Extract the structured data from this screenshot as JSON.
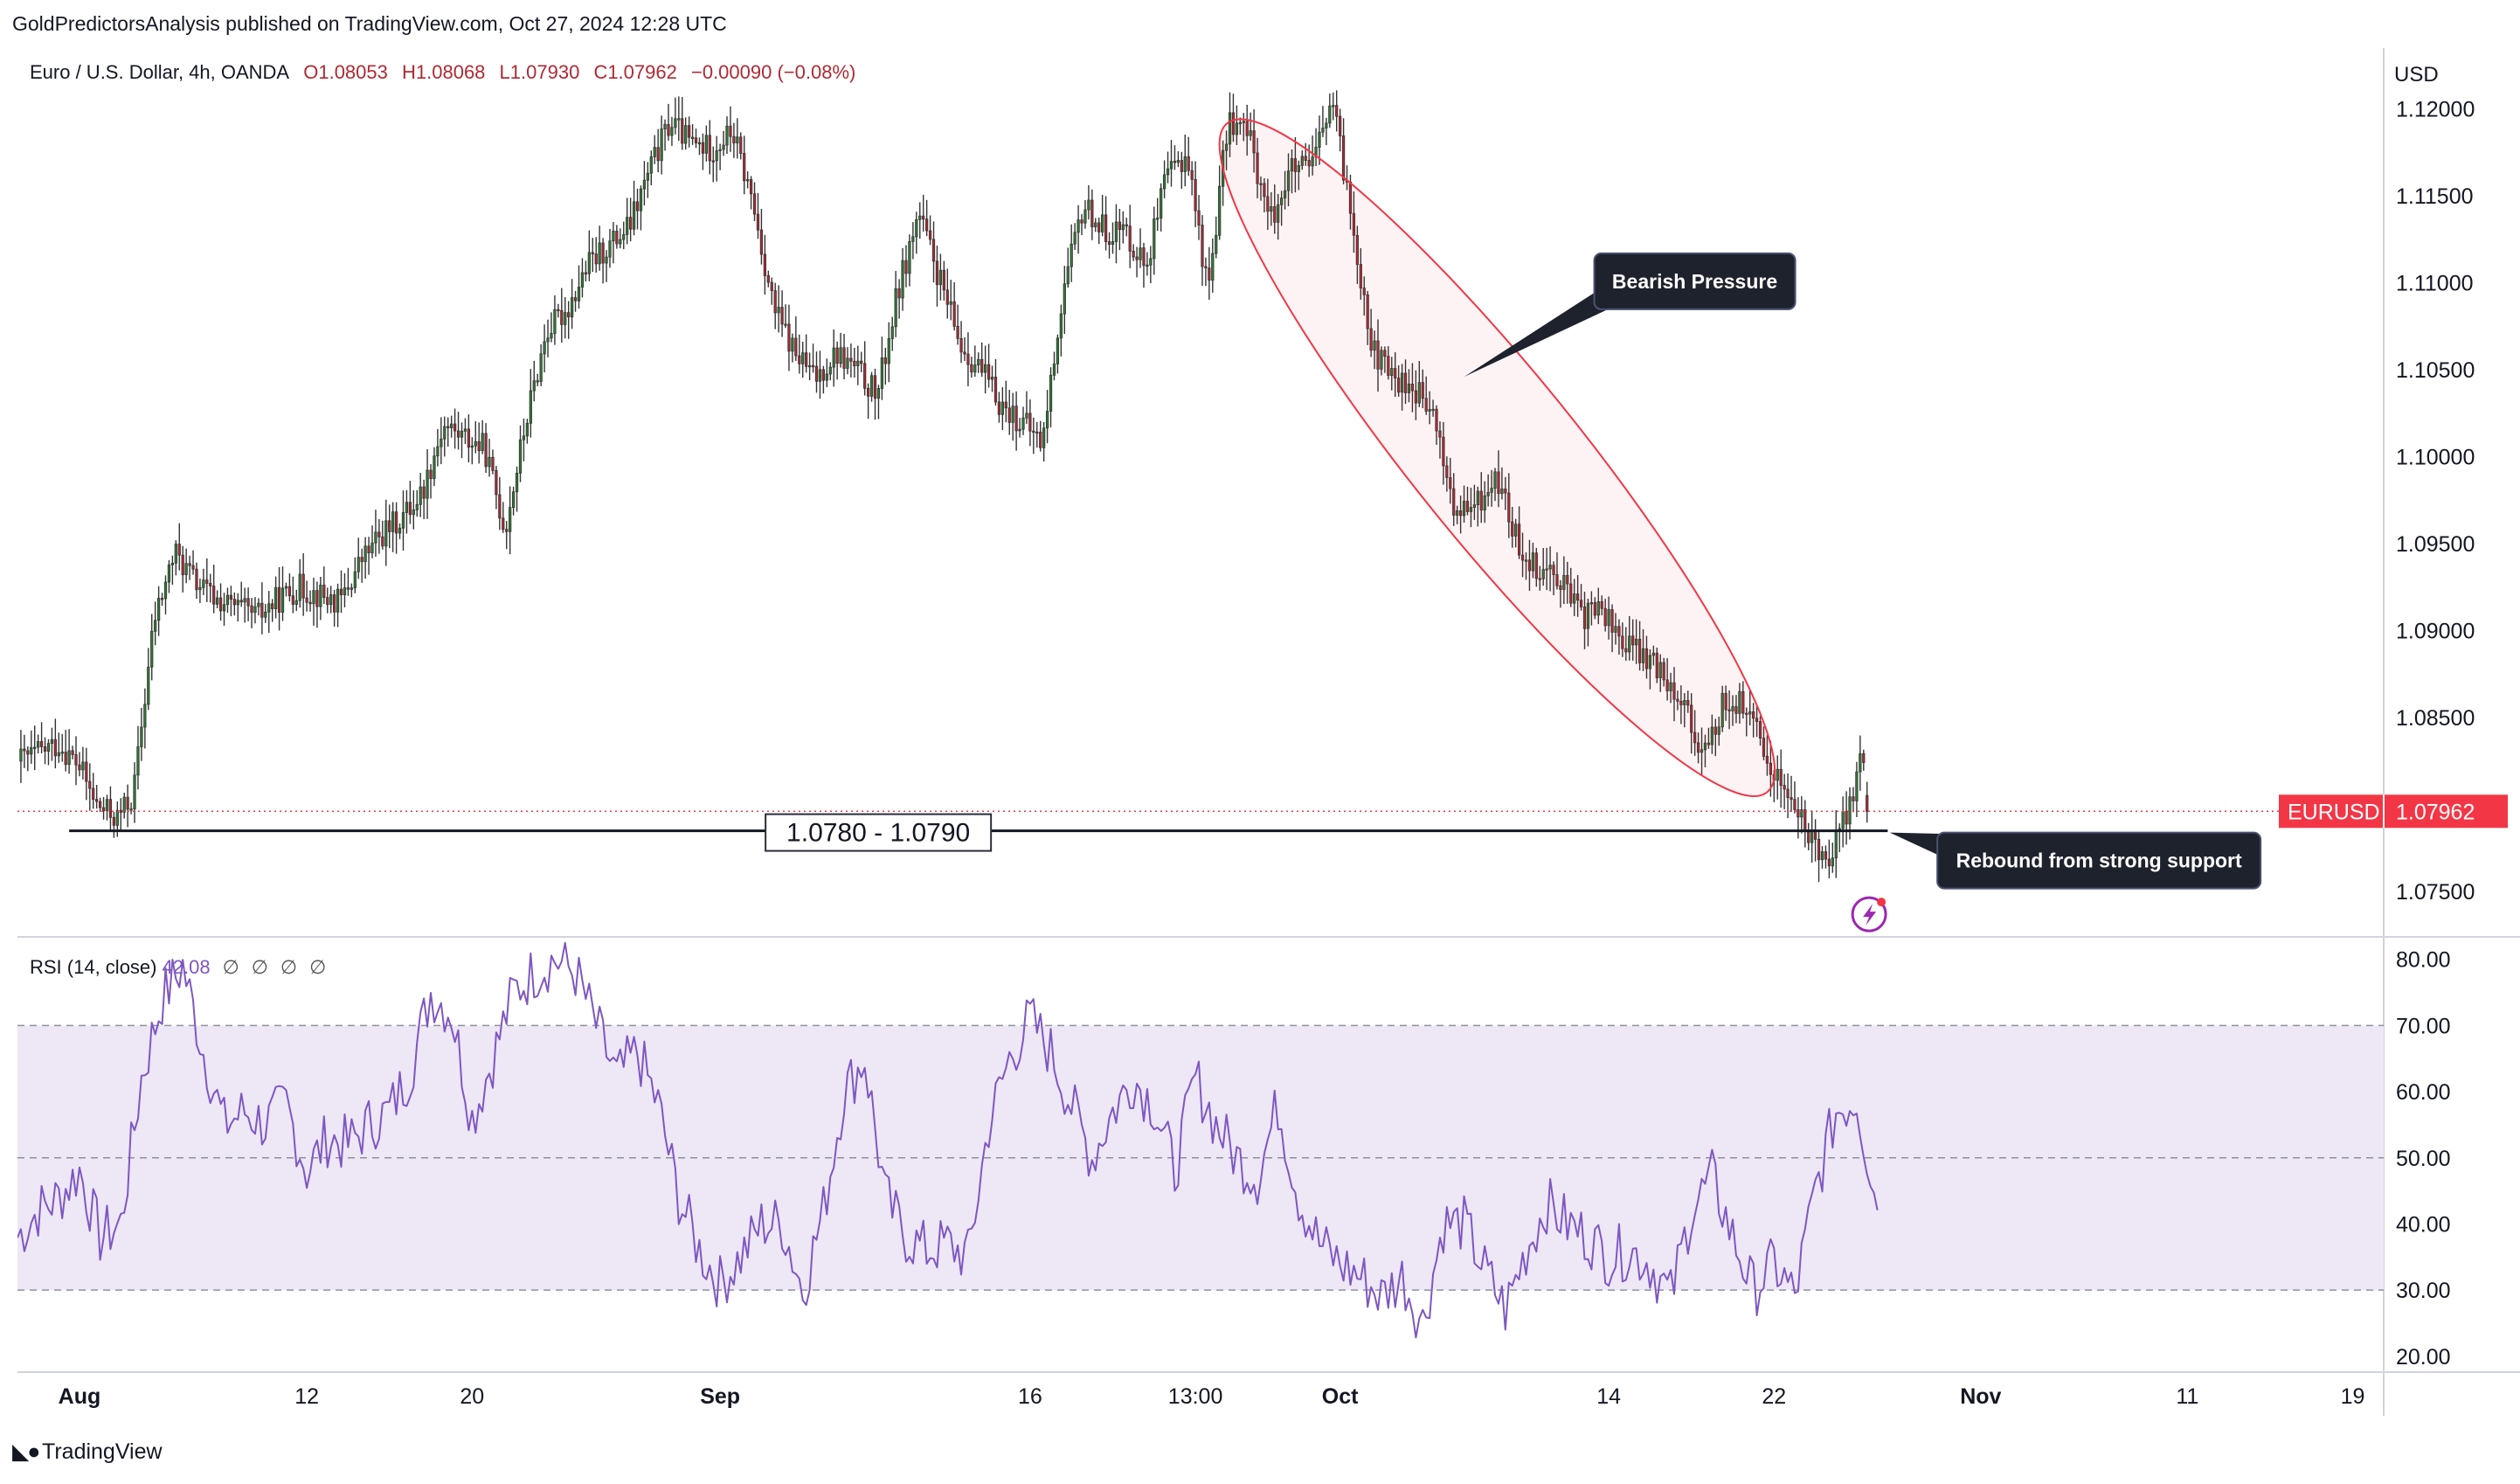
{
  "publisher": "GoldPredictorsAnalysis published on TradingView.com, Oct 27, 2024 12:28 UTC",
  "legend": {
    "symbol": "Euro / U.S. Dollar, 4h, OANDA",
    "open": "O1.08053",
    "high": "H1.08068",
    "low": "L1.07930",
    "close": "C1.07962",
    "change": "−0.00090 (−0.08%)"
  },
  "currency": "USD",
  "footer_brand": "TradingView",
  "colors": {
    "up": "#26a69a",
    "up_candle": "#2e7d32",
    "down": "#b22833",
    "rsi_line": "#7e57c2",
    "rsi_band": "#ede7f6",
    "price_tag": "#f23645",
    "ellipse": "#f23645"
  },
  "chart_data": [
    {
      "type": "candlestick",
      "timeframe": "4h",
      "y_axis_labels": [
        "1.12000",
        "1.11500",
        "1.11000",
        "1.10500",
        "1.10000",
        "1.09500",
        "1.09000",
        "1.08500",
        "1.07500"
      ],
      "ylim": [
        1.0725,
        1.1235
      ],
      "x_axis_labels": [
        "Aug",
        "12",
        "20",
        "Sep",
        "16",
        "13:00",
        "Oct",
        "14",
        "22",
        "Nov",
        "11",
        "19"
      ],
      "x_axis_days": [
        1,
        12,
        20,
        32,
        47,
        55,
        62,
        75,
        83,
        93,
        103,
        111
      ],
      "xlim": [
        -2.0,
        112.5
      ],
      "price_path_anchors": {
        "day": [
          -2,
          0,
          1,
          1.8,
          2.8,
          3.6,
          4.6,
          5.6,
          6.6,
          7.6,
          9.6,
          10.6,
          11.6,
          13.6,
          14.6,
          15.6,
          16.6,
          17.6,
          18.6,
          20.6,
          21.6,
          22.6,
          23.6,
          24.6,
          25.6,
          27.6,
          28.6,
          29.6,
          30.6,
          31.6,
          32.6,
          33.6,
          34.6,
          35.6,
          36.6,
          37.6,
          38.6,
          39.6,
          40.6,
          41.6,
          43.6,
          44.6,
          45.6,
          46.6,
          47.6,
          48.6,
          49.6,
          50.6,
          51.6,
          52.6,
          53.6,
          54.6,
          55.6,
          56.6,
          57.6,
          58.6,
          59.6,
          60.6,
          61.6,
          62.6,
          63.6,
          64.6,
          65.6,
          66.6,
          67.6,
          68.6,
          69.6,
          70.6,
          71.6,
          72.6,
          73.6,
          74.6,
          75.6,
          76.6,
          77.6,
          78.6,
          79.6,
          80.6,
          81.6,
          82.6,
          83.6,
          84.6,
          85.6,
          86.6,
          87.6
        ],
        "close": [
          1.0825,
          1.0835,
          1.0822,
          1.08,
          1.0792,
          1.0805,
          1.0905,
          1.0945,
          1.0928,
          1.0918,
          1.0908,
          1.0918,
          1.0925,
          1.0916,
          1.094,
          1.0955,
          1.0965,
          1.098,
          1.1018,
          1.1005,
          1.0958,
          1.102,
          1.1072,
          1.1085,
          1.111,
          1.1132,
          1.1165,
          1.1193,
          1.118,
          1.1177,
          1.1187,
          1.1145,
          1.1085,
          1.106,
          1.1045,
          1.106,
          1.105,
          1.1035,
          1.1095,
          1.114,
          1.1065,
          1.105,
          1.103,
          1.102,
          1.1008,
          1.1095,
          1.1145,
          1.113,
          1.113,
          1.111,
          1.116,
          1.1175,
          1.1095,
          1.1195,
          1.1185,
          1.1135,
          1.1165,
          1.1165,
          1.1205,
          1.1135,
          1.106,
          1.1045,
          1.104,
          1.102,
          1.0965,
          1.0972,
          1.0988,
          1.095,
          1.0936,
          1.0933,
          1.0908,
          1.0913,
          1.0895,
          1.0886,
          1.0877,
          1.086,
          1.0826,
          1.086,
          1.0857,
          1.0827,
          1.0808,
          1.0783,
          1.077,
          1.0797,
          1.084
        ]
      }
    },
    {
      "type": "line",
      "title": "RSI (14, close)",
      "last_value": "42.08",
      "na_values": [
        "∅",
        "∅",
        "∅",
        "∅"
      ],
      "y_axis_labels": [
        "80.00",
        "70.00",
        "60.00",
        "50.00",
        "40.00",
        "30.00",
        "20.00"
      ],
      "ylim": [
        18,
        83
      ],
      "band": [
        30,
        70
      ],
      "midline": 50,
      "x": [
        -2,
        -1,
        0,
        1,
        2,
        3,
        4,
        5,
        6,
        7,
        8,
        9,
        10,
        11,
        12,
        13,
        14,
        15,
        16,
        17,
        18,
        19,
        20,
        21,
        22,
        23,
        24,
        25,
        26,
        27,
        28,
        29,
        30,
        31,
        32,
        33,
        34,
        35,
        36,
        37,
        38,
        39,
        40,
        41,
        42,
        43,
        44,
        45,
        46,
        47,
        48,
        49,
        50,
        51,
        52,
        53,
        54,
        55,
        56,
        57,
        58,
        59,
        60,
        61,
        62,
        63,
        64,
        65,
        66,
        67,
        68,
        69,
        70,
        71,
        72,
        73,
        74,
        75,
        76,
        77,
        78,
        79,
        80,
        81,
        82,
        83,
        84,
        85,
        86,
        87,
        88
      ],
      "values": [
        38,
        42,
        44,
        48,
        38,
        40,
        62,
        74,
        79,
        66,
        55,
        57,
        55,
        58,
        48,
        53,
        52,
        55,
        57,
        63,
        75,
        72,
        56,
        65,
        75,
        78,
        80,
        78,
        70,
        62,
        66,
        58,
        44,
        36,
        31,
        35,
        40,
        40,
        30,
        42,
        60,
        65,
        44,
        38,
        36,
        37,
        35,
        55,
        65,
        71,
        66,
        58,
        50,
        57,
        62,
        58,
        48,
        62,
        55,
        50,
        47,
        58,
        44,
        37,
        34,
        32,
        29,
        32,
        25,
        40,
        40,
        33,
        27,
        36,
        43,
        40,
        38,
        35,
        36,
        34,
        29,
        42,
        47,
        38,
        30,
        34,
        29,
        45,
        57,
        59,
        42
      ]
    }
  ],
  "support_label": "1.0780 - 1.0790",
  "support_level": 1.0785,
  "current_price_tag": {
    "symbol": "EURUSD",
    "price": "1.07962",
    "value": 1.07962
  },
  "annotations": {
    "bearish": "Bearish Pressure",
    "rebound": "Rebound from strong support"
  },
  "icon_flash": "lightning-bolt-icon",
  "icon_logo": "tradingview-logo-icon"
}
